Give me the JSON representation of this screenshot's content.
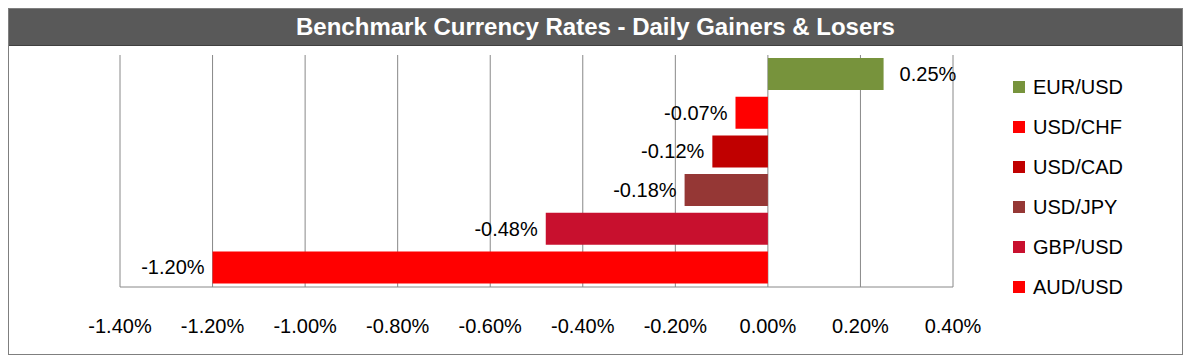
{
  "chart_data": {
    "type": "bar",
    "title": "Benchmark Currency Rates - Daily Gainers & Losers",
    "orientation": "horizontal",
    "categories": [
      "EUR/USD",
      "USD/CHF",
      "USD/CAD",
      "USD/JPY",
      "GBP/USD",
      "AUD/USD"
    ],
    "values": [
      0.25,
      -0.07,
      -0.12,
      -0.18,
      -0.48,
      -1.2
    ],
    "value_labels": [
      "0.25%",
      "-0.07%",
      "-0.12%",
      "-0.18%",
      "-0.48%",
      "-1.20%"
    ],
    "colors": [
      "#77933c",
      "#ff0000",
      "#c00000",
      "#953735",
      "#c8102e",
      "#ff0000"
    ],
    "xlim": [
      -1.4,
      0.4
    ],
    "xticks": [
      {
        "value": -1.4,
        "label": "-1.40%"
      },
      {
        "value": -1.2,
        "label": "-1.20%"
      },
      {
        "value": -1.0,
        "label": "-1.00%"
      },
      {
        "value": -0.8,
        "label": "-0.80%"
      },
      {
        "value": -0.6,
        "label": "-0.60%"
      },
      {
        "value": -0.4,
        "label": "-0.40%"
      },
      {
        "value": -0.2,
        "label": "-0.20%"
      },
      {
        "value": 0,
        "label": "0.00%"
      },
      {
        "value": 0.2,
        "label": "0.20%"
      },
      {
        "value": 0.4,
        "label": "0.40%"
      }
    ],
    "grid": true,
    "data_labels": true,
    "tick_labels": "x",
    "legend": "right"
  }
}
